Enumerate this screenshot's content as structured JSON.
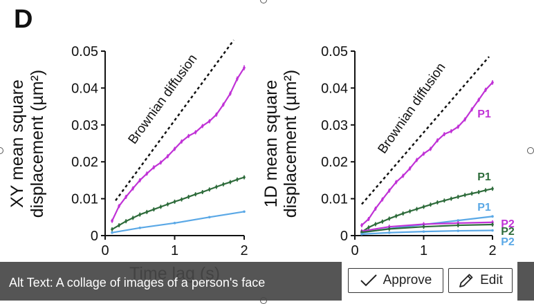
{
  "panel_letter": "D",
  "alt_bar": {
    "alt_text": "Alt Text: A collage of images of a person's face",
    "approve_label": "Approve",
    "edit_label": "Edit",
    "approve_icon": "checkmark-icon",
    "edit_icon": "pencil-icon"
  },
  "chart_data": [
    {
      "type": "line",
      "ylabel_line1": "XY mean square",
      "ylabel_line2": "displacement (µm²)",
      "xlabel": "Time lag (s)",
      "xlim": [
        0,
        2
      ],
      "ylim": [
        0,
        0.05
      ],
      "xticks": [
        "0",
        "1",
        "2"
      ],
      "yticks": [
        "0",
        "0.01",
        "0.02",
        "0.03",
        "0.04",
        "0.05"
      ],
      "reference_label": "Brownian diffusion",
      "reference_line": {
        "x": [
          0.15,
          1.85
        ],
        "y": [
          0.0095,
          0.053
        ]
      },
      "series": [
        {
          "color": "#c032d6",
          "x": [
            0.1,
            0.2,
            0.3,
            0.4,
            0.5,
            0.6,
            0.7,
            0.8,
            0.9,
            1.0,
            1.1,
            1.2,
            1.3,
            1.4,
            1.5,
            1.6,
            1.7,
            1.8,
            1.9,
            2.0
          ],
          "y": [
            0.004,
            0.008,
            0.0105,
            0.0128,
            0.015,
            0.0168,
            0.0185,
            0.0198,
            0.0215,
            0.0235,
            0.0255,
            0.027,
            0.028,
            0.0297,
            0.031,
            0.0328,
            0.0355,
            0.0385,
            0.0425,
            0.0455
          ],
          "errorbars": true
        },
        {
          "color": "#2d6b3a",
          "x": [
            0.1,
            0.2,
            0.3,
            0.4,
            0.5,
            0.6,
            0.7,
            0.8,
            0.9,
            1.0,
            1.1,
            1.2,
            1.3,
            1.4,
            1.5,
            1.6,
            1.7,
            1.8,
            1.9,
            2.0
          ],
          "y": [
            0.0017,
            0.0028,
            0.0039,
            0.0048,
            0.0057,
            0.0064,
            0.0071,
            0.0078,
            0.0085,
            0.0092,
            0.0098,
            0.0105,
            0.0112,
            0.0118,
            0.0125,
            0.0132,
            0.0139,
            0.0145,
            0.0152,
            0.0158
          ],
          "errorbars": true
        },
        {
          "color": "#5aa8e6",
          "x": [
            0.1,
            0.5,
            1.0,
            1.5,
            2.0
          ],
          "y": [
            0.0008,
            0.0021,
            0.0034,
            0.005,
            0.0065
          ],
          "errorbars": false
        }
      ]
    },
    {
      "type": "line",
      "ylabel_line1": "1D mean square",
      "ylabel_line2": "displacement (µm²)",
      "xlabel": "",
      "xlim": [
        0,
        2
      ],
      "ylim": [
        0,
        0.05
      ],
      "xticks": [
        "0",
        "1",
        "2"
      ],
      "yticks": [
        "0",
        "0.01",
        "0.02",
        "0.03",
        "0.04",
        "0.05"
      ],
      "reference_label": "Brownian diffusion",
      "reference_line": {
        "x": [
          0.1,
          1.95
        ],
        "y": [
          0.0085,
          0.0485
        ]
      },
      "series": [
        {
          "name": "P1",
          "color": "#c032d6",
          "x": [
            0.1,
            0.2,
            0.3,
            0.4,
            0.5,
            0.6,
            0.7,
            0.8,
            0.9,
            1.0,
            1.1,
            1.2,
            1.3,
            1.4,
            1.5,
            1.6,
            1.7,
            1.8,
            1.9,
            2.0
          ],
          "y": [
            0.0028,
            0.0045,
            0.0073,
            0.0098,
            0.0122,
            0.0145,
            0.0162,
            0.0182,
            0.0205,
            0.0222,
            0.0235,
            0.0258,
            0.0275,
            0.0283,
            0.0295,
            0.0315,
            0.0342,
            0.0368,
            0.0395,
            0.0415
          ],
          "errorbars": true
        },
        {
          "name": "P1",
          "color": "#2d6b3a",
          "x": [
            0.1,
            0.2,
            0.3,
            0.4,
            0.5,
            0.6,
            0.7,
            0.8,
            0.9,
            1.0,
            1.1,
            1.2,
            1.3,
            1.4,
            1.5,
            1.6,
            1.7,
            1.8,
            1.9,
            2.0
          ],
          "y": [
            0.001,
            0.0022,
            0.0031,
            0.0038,
            0.0046,
            0.0053,
            0.006,
            0.0066,
            0.0072,
            0.0078,
            0.0084,
            0.009,
            0.0095,
            0.01,
            0.0105,
            0.011,
            0.0114,
            0.0118,
            0.0123,
            0.0127
          ],
          "errorbars": true
        },
        {
          "name": "P1",
          "color": "#5aa8e6",
          "x": [
            0.1,
            0.5,
            1.0,
            1.5,
            2.0
          ],
          "y": [
            0.0008,
            0.0019,
            0.003,
            0.0041,
            0.0052
          ],
          "errorbars": false
        },
        {
          "name": "P2",
          "color": "#c032d6",
          "x": [
            0.1,
            0.5,
            1.0,
            1.5,
            2.0
          ],
          "y": [
            0.0012,
            0.0024,
            0.0031,
            0.0034,
            0.0036
          ],
          "errorbars": true
        },
        {
          "name": "P2",
          "color": "#2d6b3a",
          "x": [
            0.1,
            0.5,
            1.0,
            1.5,
            2.0
          ],
          "y": [
            0.0009,
            0.0018,
            0.0024,
            0.0028,
            0.003
          ],
          "errorbars": true
        },
        {
          "name": "P2",
          "color": "#5aa8e6",
          "x": [
            0.1,
            0.5,
            1.0,
            1.5,
            2.0
          ],
          "y": [
            0.0004,
            0.0008,
            0.0011,
            0.0013,
            0.0014
          ],
          "errorbars": false
        }
      ]
    }
  ]
}
